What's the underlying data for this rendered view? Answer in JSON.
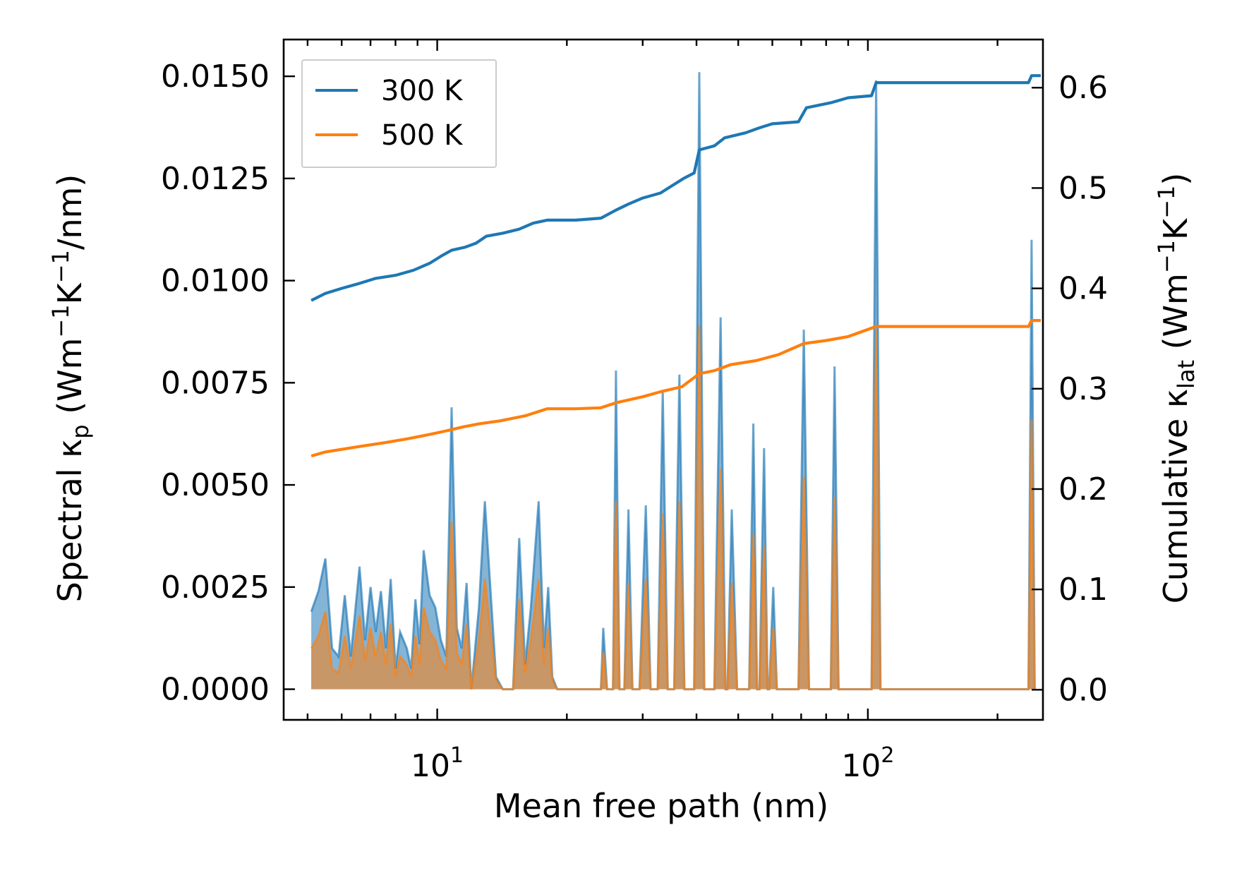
{
  "colors": {
    "series_300": "#1f77b4",
    "series_500": "#ff7f0e",
    "axes": "#000000",
    "legend_border": "#cccccc"
  },
  "chart_data": {
    "type": "line",
    "title": "",
    "xlabel": "Mean free path (nm)",
    "ylabel_left": {
      "main": "Spectral κ",
      "sub": "p",
      "units_a": " (Wm",
      "sup1": "−1",
      "units_b": "K",
      "sup2": "−1",
      "units_c": "/nm)"
    },
    "ylabel_right": {
      "main": "Cumulative κ",
      "sub": "lat",
      "units_a": " (Wm",
      "sup1": "−1",
      "units_b": "K",
      "sup2": "−1",
      "units_c": ")"
    },
    "xscale": "log",
    "xlim": [
      4.4,
      255
    ],
    "ylim_left": [
      -0.00075,
      0.0159
    ],
    "ylim_right": [
      -0.03,
      0.648
    ],
    "x_ticks": [
      {
        "value": 10,
        "base": "10",
        "exp": "1"
      },
      {
        "value": 100,
        "base": "10",
        "exp": "2"
      }
    ],
    "yticks_left": [
      {
        "value": 0.0,
        "label": "0.0000"
      },
      {
        "value": 0.0025,
        "label": "0.0025"
      },
      {
        "value": 0.005,
        "label": "0.0050"
      },
      {
        "value": 0.0075,
        "label": "0.0075"
      },
      {
        "value": 0.01,
        "label": "0.0100"
      },
      {
        "value": 0.0125,
        "label": "0.0125"
      },
      {
        "value": 0.015,
        "label": "0.0150"
      }
    ],
    "yticks_right": [
      {
        "value": 0.0,
        "label": "0.0"
      },
      {
        "value": 0.1,
        "label": "0.1"
      },
      {
        "value": 0.2,
        "label": "0.2"
      },
      {
        "value": 0.3,
        "label": "0.3"
      },
      {
        "value": 0.4,
        "label": "0.4"
      },
      {
        "value": 0.5,
        "label": "0.5"
      },
      {
        "value": 0.6,
        "label": "0.6"
      }
    ],
    "legend": {
      "position": "upper-left",
      "entries": [
        "300 K",
        "500 K"
      ]
    },
    "spectral_series": [
      {
        "name": "300 K",
        "points": [
          [
            5.1,
            0.0019
          ],
          [
            5.3,
            0.0024
          ],
          [
            5.5,
            0.0032
          ],
          [
            5.7,
            0.001
          ],
          [
            5.9,
            0.0008
          ],
          [
            6.1,
            0.0023
          ],
          [
            6.3,
            0.0008
          ],
          [
            6.6,
            0.003
          ],
          [
            6.8,
            0.0012
          ],
          [
            7.0,
            0.0025
          ],
          [
            7.2,
            0.0014
          ],
          [
            7.4,
            0.0024
          ],
          [
            7.6,
            0.001
          ],
          [
            7.8,
            0.0027
          ],
          [
            8.0,
            0.0005
          ],
          [
            8.2,
            0.0014
          ],
          [
            8.5,
            0.001
          ],
          [
            8.7,
            0.0005
          ],
          [
            8.9,
            0.0022
          ],
          [
            9.1,
            0.0011
          ],
          [
            9.3,
            0.0034
          ],
          [
            9.6,
            0.0023
          ],
          [
            9.9,
            0.002
          ],
          [
            10.2,
            0.0012
          ],
          [
            10.5,
            0.0008
          ],
          [
            10.8,
            0.0069
          ],
          [
            11.1,
            0.0015
          ],
          [
            11.4,
            0.001
          ],
          [
            11.7,
            0.0026
          ],
          [
            12.0,
            0.0
          ],
          [
            12.5,
            0.002
          ],
          [
            12.9,
            0.0046
          ],
          [
            13.3,
            0.0024
          ],
          [
            13.7,
            0.0003
          ],
          [
            14.2,
            0.0
          ],
          [
            15.0,
            0.0
          ],
          [
            15.5,
            0.0037
          ],
          [
            16.0,
            0.0006
          ],
          [
            16.5,
            0.002
          ],
          [
            17.2,
            0.0046
          ],
          [
            17.7,
            0.001
          ],
          [
            18.1,
            0.0025
          ],
          [
            18.5,
            0.0003
          ],
          [
            19.0,
            0.0
          ],
          [
            21.0,
            0.0
          ],
          [
            24.0,
            0.0
          ],
          [
            24.3,
            0.0015
          ],
          [
            24.8,
            0.0
          ],
          [
            25.6,
            0.0
          ],
          [
            26.0,
            0.0078
          ],
          [
            26.5,
            0.0
          ],
          [
            27.2,
            0.0
          ],
          [
            27.8,
            0.0044
          ],
          [
            28.4,
            0.0
          ],
          [
            29.5,
            0.0
          ],
          [
            30.5,
            0.0045
          ],
          [
            31.3,
            0.0
          ],
          [
            32.5,
            0.0
          ],
          [
            33.4,
            0.0073
          ],
          [
            34.3,
            0.0
          ],
          [
            35.5,
            0.0
          ],
          [
            36.5,
            0.0077
          ],
          [
            37.5,
            0.0
          ],
          [
            39.5,
            0.0
          ],
          [
            40.6,
            0.0151
          ],
          [
            41.7,
            0.0
          ],
          [
            44.0,
            0.0
          ],
          [
            45.5,
            0.0091
          ],
          [
            46.7,
            0.0
          ],
          [
            47.2,
            0.0
          ],
          [
            48.3,
            0.0044
          ],
          [
            49.7,
            0.0
          ],
          [
            53.0,
            0.0
          ],
          [
            54.2,
            0.0065
          ],
          [
            55.3,
            0.0
          ],
          [
            56.0,
            0.0
          ],
          [
            57.4,
            0.0059
          ],
          [
            58.5,
            0.0
          ],
          [
            59.0,
            0.0
          ],
          [
            60.3,
            0.0025
          ],
          [
            61.5,
            0.0
          ],
          [
            69.0,
            0.0
          ],
          [
            71.0,
            0.0088
          ],
          [
            73.0,
            0.0
          ],
          [
            82.0,
            0.0
          ],
          [
            83.7,
            0.0079
          ],
          [
            85.5,
            0.0
          ],
          [
            102.0,
            0.0
          ],
          [
            104.5,
            0.0149
          ],
          [
            107.0,
            0.0
          ],
          [
            236.0,
            0.0
          ],
          [
            240.0,
            0.011
          ],
          [
            244.0,
            0.0
          ]
        ]
      },
      {
        "name": "500 K",
        "points": [
          [
            5.1,
            0.001
          ],
          [
            5.3,
            0.0013
          ],
          [
            5.5,
            0.0019
          ],
          [
            5.7,
            0.0005
          ],
          [
            5.9,
            0.0004
          ],
          [
            6.1,
            0.0013
          ],
          [
            6.3,
            0.0005
          ],
          [
            6.6,
            0.0018
          ],
          [
            6.8,
            0.0007
          ],
          [
            7.0,
            0.0015
          ],
          [
            7.2,
            0.0008
          ],
          [
            7.4,
            0.0014
          ],
          [
            7.6,
            0.0006
          ],
          [
            7.8,
            0.0016
          ],
          [
            8.0,
            0.0003
          ],
          [
            8.2,
            0.0008
          ],
          [
            8.5,
            0.0006
          ],
          [
            8.7,
            0.0003
          ],
          [
            8.9,
            0.0013
          ],
          [
            9.1,
            0.0006
          ],
          [
            9.3,
            0.002
          ],
          [
            9.6,
            0.0014
          ],
          [
            9.9,
            0.0012
          ],
          [
            10.2,
            0.0007
          ],
          [
            10.5,
            0.0005
          ],
          [
            10.8,
            0.0041
          ],
          [
            11.1,
            0.0009
          ],
          [
            11.4,
            0.0006
          ],
          [
            11.7,
            0.0016
          ],
          [
            12.0,
            0.0
          ],
          [
            12.5,
            0.0012
          ],
          [
            12.9,
            0.0027
          ],
          [
            13.3,
            0.0014
          ],
          [
            13.7,
            0.0002
          ],
          [
            14.2,
            0.0
          ],
          [
            15.0,
            0.0
          ],
          [
            15.5,
            0.0022
          ],
          [
            16.0,
            0.0004
          ],
          [
            16.5,
            0.0012
          ],
          [
            17.2,
            0.0027
          ],
          [
            17.7,
            0.0006
          ],
          [
            18.1,
            0.0015
          ],
          [
            18.5,
            0.0002
          ],
          [
            19.0,
            0.0
          ],
          [
            21.0,
            0.0
          ],
          [
            24.0,
            0.0
          ],
          [
            24.3,
            0.0009
          ],
          [
            24.8,
            0.0
          ],
          [
            25.6,
            0.0
          ],
          [
            26.0,
            0.0046
          ],
          [
            26.5,
            0.0
          ],
          [
            27.2,
            0.0
          ],
          [
            27.8,
            0.0026
          ],
          [
            28.4,
            0.0
          ],
          [
            29.5,
            0.0
          ],
          [
            30.5,
            0.0027
          ],
          [
            31.3,
            0.0
          ],
          [
            32.5,
            0.0
          ],
          [
            33.4,
            0.0043
          ],
          [
            34.3,
            0.0
          ],
          [
            35.5,
            0.0
          ],
          [
            36.5,
            0.0046
          ],
          [
            37.5,
            0.0
          ],
          [
            39.5,
            0.0
          ],
          [
            40.6,
            0.0089
          ],
          [
            41.7,
            0.0
          ],
          [
            44.0,
            0.0
          ],
          [
            45.5,
            0.0054
          ],
          [
            46.7,
            0.0
          ],
          [
            47.2,
            0.0
          ],
          [
            48.3,
            0.0026
          ],
          [
            49.7,
            0.0
          ],
          [
            53.0,
            0.0
          ],
          [
            54.2,
            0.0038
          ],
          [
            55.3,
            0.0
          ],
          [
            56.0,
            0.0
          ],
          [
            57.4,
            0.0035
          ],
          [
            58.5,
            0.0
          ],
          [
            59.0,
            0.0
          ],
          [
            60.3,
            0.0015
          ],
          [
            61.5,
            0.0
          ],
          [
            69.0,
            0.0
          ],
          [
            71.0,
            0.0052
          ],
          [
            73.0,
            0.0
          ],
          [
            82.0,
            0.0
          ],
          [
            83.7,
            0.0047
          ],
          [
            85.5,
            0.0
          ],
          [
            102.0,
            0.0
          ],
          [
            104.5,
            0.0088
          ],
          [
            107.0,
            0.0
          ],
          [
            236.0,
            0.0
          ],
          [
            240.0,
            0.0066
          ],
          [
            244.0,
            0.0
          ]
        ]
      }
    ],
    "cumulative_series": [
      {
        "name": "300 K",
        "points": [
          [
            5.1,
            0.388
          ],
          [
            5.5,
            0.395
          ],
          [
            6.0,
            0.4
          ],
          [
            6.6,
            0.405
          ],
          [
            7.2,
            0.41
          ],
          [
            8.0,
            0.413
          ],
          [
            8.8,
            0.418
          ],
          [
            9.6,
            0.425
          ],
          [
            10.2,
            0.432
          ],
          [
            10.8,
            0.438
          ],
          [
            11.6,
            0.441
          ],
          [
            12.3,
            0.445
          ],
          [
            13.0,
            0.452
          ],
          [
            14.2,
            0.455
          ],
          [
            15.5,
            0.459
          ],
          [
            16.7,
            0.465
          ],
          [
            18.0,
            0.468
          ],
          [
            21.0,
            0.468
          ],
          [
            24.0,
            0.47
          ],
          [
            26.0,
            0.478
          ],
          [
            27.8,
            0.484
          ],
          [
            30.0,
            0.49
          ],
          [
            33.0,
            0.495
          ],
          [
            35.0,
            0.502
          ],
          [
            37.5,
            0.51
          ],
          [
            39.5,
            0.515
          ],
          [
            40.6,
            0.538
          ],
          [
            44.0,
            0.542
          ],
          [
            46.5,
            0.55
          ],
          [
            52.0,
            0.555
          ],
          [
            56.0,
            0.56
          ],
          [
            60.0,
            0.564
          ],
          [
            69.0,
            0.566
          ],
          [
            72.0,
            0.58
          ],
          [
            82.0,
            0.585
          ],
          [
            90.0,
            0.59
          ],
          [
            102.0,
            0.592
          ],
          [
            104.5,
            0.605
          ],
          [
            236.0,
            0.605
          ],
          [
            240.0,
            0.612
          ],
          [
            252.0,
            0.612
          ]
        ]
      },
      {
        "name": "500 K",
        "points": [
          [
            5.1,
            0.233
          ],
          [
            5.5,
            0.237
          ],
          [
            6.5,
            0.242
          ],
          [
            7.5,
            0.246
          ],
          [
            8.5,
            0.25
          ],
          [
            9.5,
            0.254
          ],
          [
            10.5,
            0.258
          ],
          [
            11.5,
            0.262
          ],
          [
            12.5,
            0.265
          ],
          [
            14.0,
            0.268
          ],
          [
            16.0,
            0.273
          ],
          [
            18.0,
            0.28
          ],
          [
            21.0,
            0.28
          ],
          [
            24.0,
            0.281
          ],
          [
            26.0,
            0.286
          ],
          [
            30.0,
            0.292
          ],
          [
            33.0,
            0.297
          ],
          [
            37.0,
            0.302
          ],
          [
            40.6,
            0.315
          ],
          [
            44.0,
            0.318
          ],
          [
            48.0,
            0.324
          ],
          [
            55.0,
            0.328
          ],
          [
            62.0,
            0.334
          ],
          [
            71.0,
            0.345
          ],
          [
            80.0,
            0.348
          ],
          [
            90.0,
            0.352
          ],
          [
            104.5,
            0.362
          ],
          [
            236.0,
            0.362
          ],
          [
            240.0,
            0.368
          ],
          [
            252.0,
            0.368
          ]
        ]
      }
    ]
  }
}
